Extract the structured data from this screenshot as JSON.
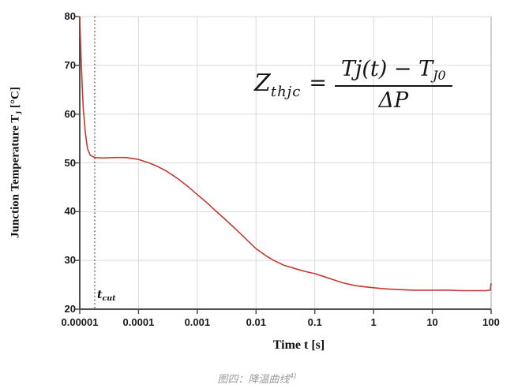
{
  "figure": {
    "caption": {
      "text": "图四：降温曲线",
      "superscript": "4)"
    },
    "formula": {
      "lhs_base": "Z",
      "lhs_sub": "thjc",
      "equals": "=",
      "numerator_main": "Tj(t) − T",
      "numerator_sub": "J0",
      "denominator": "ΔP"
    },
    "annotation": {
      "tcut_base": "t",
      "tcut_sub": "cut"
    }
  },
  "chart_data": {
    "type": "line",
    "title": "",
    "xlabel": "Time t [s]",
    "ylabel": "Junction Temperature TJ [°C]",
    "ylabel_parts": {
      "main": "Junction Temperature T",
      "sub": "J",
      "unit": " [°C]"
    },
    "x_scale": "log",
    "xlim": [
      1e-05,
      100
    ],
    "ylim": [
      20,
      80
    ],
    "x_ticks": [
      1e-05,
      0.0001,
      0.001,
      0.01,
      0.1,
      1,
      10,
      100
    ],
    "x_tick_labels": [
      "0.00001",
      "0.0001",
      "0.001",
      "0.01",
      "0.1",
      "1",
      "10",
      "100"
    ],
    "y_ticks": [
      20,
      30,
      40,
      50,
      60,
      70,
      80
    ],
    "y_tick_labels": [
      "20",
      "30",
      "40",
      "50",
      "60",
      "70",
      "80"
    ],
    "grid": true,
    "legend": "none",
    "colors": {
      "curve": "#c23b33",
      "grid": "#d9d9d9",
      "border": "#c0c0c0",
      "axis": "#4d4d4d",
      "dashed_line": "#333333",
      "caption": "#9a9a9a"
    },
    "vline": {
      "x": 1.8e-05,
      "style": "dotted",
      "label": "t_cut"
    },
    "series": [
      {
        "name": "junction-temperature-cooling-curve",
        "color": "#c23b33",
        "points": [
          [
            1e-05,
            80
          ],
          [
            1.05e-05,
            72
          ],
          [
            1.1e-05,
            66
          ],
          [
            1.15e-05,
            61
          ],
          [
            1.25e-05,
            56
          ],
          [
            1.35e-05,
            53
          ],
          [
            1.5e-05,
            51.6
          ],
          [
            1.8e-05,
            51.1
          ],
          [
            2.5e-05,
            51.0
          ],
          [
            4e-05,
            51.1
          ],
          [
            6e-05,
            51.1
          ],
          [
            8e-05,
            50.9
          ],
          [
            0.0001,
            50.7
          ],
          [
            0.00015,
            50.0
          ],
          [
            0.0002,
            49.4
          ],
          [
            0.0003,
            48.3
          ],
          [
            0.0004,
            47.3
          ],
          [
            0.0005,
            46.5
          ],
          [
            0.0007,
            45.1
          ],
          [
            0.001,
            43.5
          ],
          [
            0.0015,
            41.7
          ],
          [
            0.002,
            40.3
          ],
          [
            0.003,
            38.4
          ],
          [
            0.004,
            37.0
          ],
          [
            0.005,
            35.9
          ],
          [
            0.007,
            34.2
          ],
          [
            0.01,
            32.4
          ],
          [
            0.015,
            30.9
          ],
          [
            0.02,
            30.0
          ],
          [
            0.03,
            29.0
          ],
          [
            0.05,
            28.2
          ],
          [
            0.07,
            27.7
          ],
          [
            0.1,
            27.3
          ],
          [
            0.15,
            26.6
          ],
          [
            0.2,
            26.1
          ],
          [
            0.3,
            25.4
          ],
          [
            0.5,
            24.8
          ],
          [
            0.7,
            24.6
          ],
          [
            1,
            24.4
          ],
          [
            1.5,
            24.2
          ],
          [
            2,
            24.1
          ],
          [
            3,
            24.0
          ],
          [
            5,
            23.9
          ],
          [
            10,
            23.9
          ],
          [
            20,
            23.9
          ],
          [
            30,
            23.8
          ],
          [
            50,
            23.8
          ],
          [
            80,
            23.8
          ],
          [
            97,
            23.9
          ],
          [
            100,
            25.3
          ]
        ]
      }
    ]
  }
}
